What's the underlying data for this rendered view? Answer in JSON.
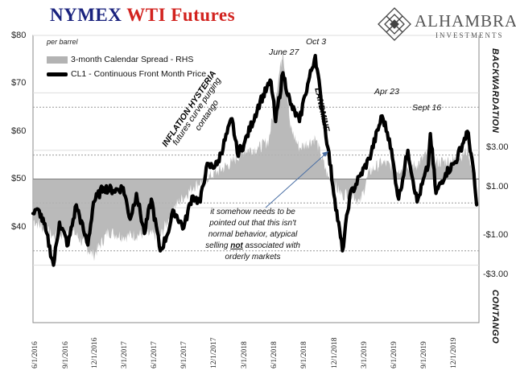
{
  "title": {
    "part1": "NYMEX",
    "part2": "WTI Futures"
  },
  "brand": {
    "name": "ALHAMBRA",
    "sub": "INVESTMENTS",
    "logo_icon": "diamond-lattice-icon"
  },
  "colors": {
    "price": "#000000",
    "spread": "#b3b3b3",
    "title_blue": "#1a237e",
    "title_red": "#d2231f"
  },
  "chart_data": {
    "type": "line",
    "title": "NYMEX WTI Futures",
    "ylabel": "per barrel",
    "ylim": [
      30,
      80
    ],
    "ylim_right": [
      -6.0,
      6.0
    ],
    "y_ticks": [
      "$80",
      "$70",
      "$60",
      "$50",
      "$40"
    ],
    "y_ticks_right": [
      "$3.00",
      "$1.00",
      "-$1.00",
      "-$3.00"
    ],
    "x_ticks": [
      "6/1/2016",
      "9/1/2016",
      "12/1/2016",
      "3/1/2017",
      "6/1/2017",
      "9/1/2017",
      "12/1/2017",
      "3/1/2018",
      "6/1/2018",
      "9/1/2018",
      "12/1/2018",
      "3/1/2019",
      "6/1/2019",
      "9/1/2019",
      "12/1/2019"
    ],
    "right_axis_labels": {
      "top": "BACKWARDATION",
      "bottom": "CONTANGO"
    },
    "legend_position": "top-left",
    "series": [
      {
        "name": "CL1 - Continuous Front Month Price",
        "axis": "left",
        "style": "thick-line",
        "points": [
          [
            "2016-06-01",
            49.0
          ],
          [
            "2016-06-20",
            49.5
          ],
          [
            "2016-07-10",
            46.0
          ],
          [
            "2016-08-02",
            40.0
          ],
          [
            "2016-08-20",
            47.5
          ],
          [
            "2016-09-15",
            43.5
          ],
          [
            "2016-10-10",
            50.5
          ],
          [
            "2016-11-01",
            46.0
          ],
          [
            "2016-11-14",
            43.5
          ],
          [
            "2016-12-01",
            51.0
          ],
          [
            "2016-12-31",
            53.5
          ],
          [
            "2017-02-01",
            53.0
          ],
          [
            "2017-03-01",
            53.5
          ],
          [
            "2017-03-22",
            48.0
          ],
          [
            "2017-04-10",
            52.5
          ],
          [
            "2017-05-04",
            45.5
          ],
          [
            "2017-05-25",
            51.5
          ],
          [
            "2017-06-21",
            42.5
          ],
          [
            "2017-07-10",
            45.0
          ],
          [
            "2017-08-01",
            49.5
          ],
          [
            "2017-08-31",
            46.5
          ],
          [
            "2017-09-25",
            52.0
          ],
          [
            "2017-10-20",
            51.0
          ],
          [
            "2017-11-07",
            57.0
          ],
          [
            "2017-12-10",
            57.5
          ],
          [
            "2018-01-24",
            65.5
          ],
          [
            "2018-02-09",
            59.5
          ],
          [
            "2018-03-01",
            61.0
          ],
          [
            "2018-04-19",
            68.5
          ],
          [
            "2018-05-22",
            72.0
          ],
          [
            "2018-06-05",
            65.0
          ],
          [
            "2018-06-27",
            73.5
          ],
          [
            "2018-07-20",
            68.0
          ],
          [
            "2018-08-16",
            65.0
          ],
          [
            "2018-09-01",
            69.5
          ],
          [
            "2018-10-03",
            76.5
          ],
          [
            "2018-10-20",
            69.0
          ],
          [
            "2018-11-10",
            60.5
          ],
          [
            "2018-12-01",
            51.5
          ],
          [
            "2018-12-24",
            42.5
          ],
          [
            "2019-01-15",
            52.0
          ],
          [
            "2019-02-15",
            55.5
          ],
          [
            "2019-03-15",
            58.5
          ],
          [
            "2019-04-23",
            66.0
          ],
          [
            "2019-05-15",
            62.0
          ],
          [
            "2019-06-12",
            51.5
          ],
          [
            "2019-07-10",
            60.0
          ],
          [
            "2019-08-07",
            51.0
          ],
          [
            "2019-09-10",
            57.5
          ],
          [
            "2019-09-16",
            62.9
          ],
          [
            "2019-10-03",
            52.5
          ],
          [
            "2019-11-01",
            56.0
          ],
          [
            "2019-12-01",
            58.0
          ],
          [
            "2020-01-06",
            63.3
          ],
          [
            "2020-01-20",
            58.5
          ],
          [
            "2020-02-03",
            50.5
          ]
        ]
      },
      {
        "name": "3-month Calendar Spread - RHS",
        "axis": "right",
        "style": "area",
        "points": [
          [
            "2016-06-01",
            -1.7
          ],
          [
            "2016-08-01",
            -2.4
          ],
          [
            "2016-10-01",
            -2.2
          ],
          [
            "2016-12-01",
            -3.2
          ],
          [
            "2017-01-15",
            -2.2
          ],
          [
            "2017-03-01",
            -2.4
          ],
          [
            "2017-05-01",
            -2.3
          ],
          [
            "2017-06-21",
            -2.4
          ],
          [
            "2017-08-01",
            -1.2
          ],
          [
            "2017-10-01",
            -0.3
          ],
          [
            "2017-12-10",
            0.3
          ],
          [
            "2018-01-24",
            0.7
          ],
          [
            "2018-03-01",
            1.2
          ],
          [
            "2018-04-15",
            1.3
          ],
          [
            "2018-05-15",
            1.6
          ],
          [
            "2018-06-27",
            5.4
          ],
          [
            "2018-07-20",
            2.1
          ],
          [
            "2018-08-16",
            1.3
          ],
          [
            "2018-10-03",
            1.7
          ],
          [
            "2018-11-10",
            0.1
          ],
          [
            "2018-12-24",
            -0.7
          ],
          [
            "2019-01-15",
            -0.5
          ],
          [
            "2019-02-15",
            -1.0
          ],
          [
            "2019-03-15",
            0.3
          ],
          [
            "2019-04-23",
            0.7
          ],
          [
            "2019-06-12",
            0.4
          ],
          [
            "2019-08-07",
            0.6
          ],
          [
            "2019-09-16",
            1.2
          ],
          [
            "2019-10-03",
            0.7
          ],
          [
            "2019-12-01",
            0.8
          ],
          [
            "2020-01-06",
            1.2
          ],
          [
            "2020-02-03",
            -0.3
          ]
        ]
      }
    ],
    "annotations": [
      {
        "date": "2018-06-27",
        "text": "June 27"
      },
      {
        "date": "2018-10-03",
        "text": "Oct 3"
      },
      {
        "date": "2019-04-23",
        "text": "Apr 23"
      },
      {
        "date": "2019-09-16",
        "text": "Sept 16"
      }
    ]
  },
  "legend": {
    "per_barrel": "per barrel",
    "spread": "3-month Calendar Spread - RHS",
    "price": "CL1 - Continuous Front Month Price"
  },
  "labels": {
    "inflation": [
      "INFLATION HYSTERIA",
      "futures curve purging",
      "contango"
    ],
    "landmine": "LANDMINE",
    "backwardation": "BACKWARDATION",
    "contango_side": "CONTANGO"
  },
  "note": [
    "it somehow needs to be",
    "pointed out that this isn't",
    "normal behavior, atypical",
    "selling not associated with",
    "orderly markets"
  ]
}
